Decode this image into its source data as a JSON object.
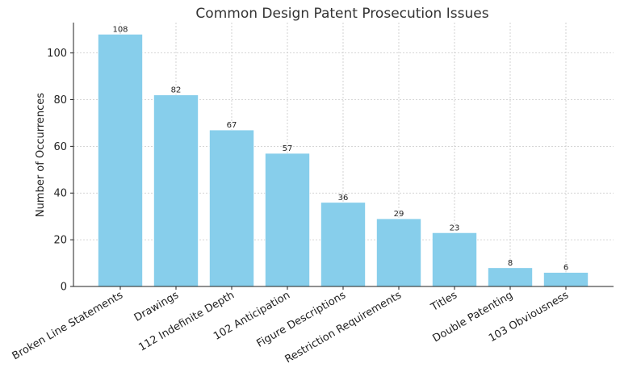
{
  "chart_data": {
    "type": "bar",
    "title": "Common Design Patent Prosecution Issues",
    "xlabel": "",
    "ylabel": "Number of Occurrences",
    "categories": [
      "Broken Line Statements",
      "Drawings",
      "112 Indefinite Depth",
      "102 Anticipation",
      "Figure Descriptions",
      "Restriction Requirements",
      "Titles",
      "Double Patenting",
      "103 Obviousness"
    ],
    "values": [
      108,
      82,
      67,
      57,
      36,
      29,
      23,
      8,
      6
    ],
    "data_labels": [
      "108",
      "82",
      "67",
      "57",
      "36",
      "29",
      "23",
      "8",
      "6"
    ],
    "ylim": [
      0,
      113
    ],
    "yticks": [
      0,
      20,
      40,
      60,
      80,
      100
    ],
    "ytick_labels": [
      "0",
      "20",
      "40",
      "60",
      "80",
      "100"
    ],
    "grid": true,
    "bar_color": "#87ceeb",
    "legend": "none"
  }
}
